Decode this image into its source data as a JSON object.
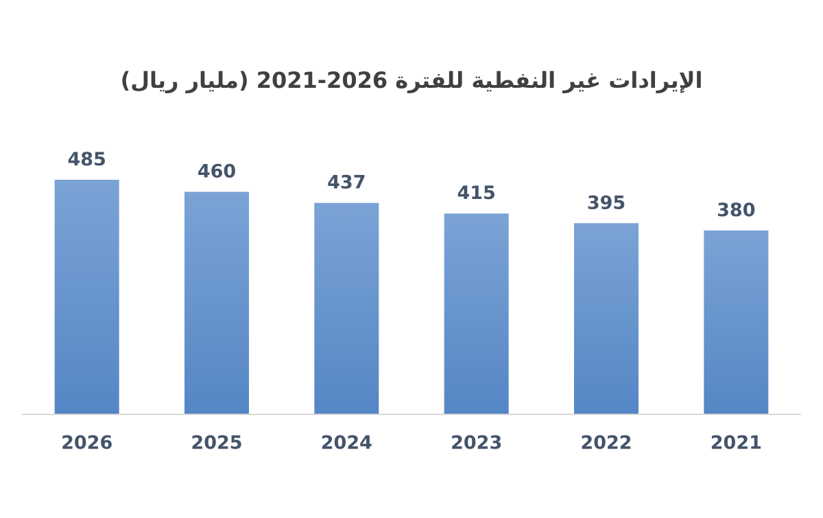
{
  "chart_data": {
    "type": "bar",
    "title": "الإيرادات غير النفطية للفترة 2026-2021 (مليار ريال)",
    "categories": [
      "2026",
      "2025",
      "2024",
      "2023",
      "2022",
      "2021"
    ],
    "values": [
      485,
      460,
      437,
      415,
      395,
      380
    ],
    "xlabel": "",
    "ylabel": "",
    "ylim": [
      0,
      485
    ],
    "grid": false,
    "legend": "none",
    "bar_color_top": "#7ba3d6",
    "bar_color_bottom": "#5586c5",
    "axis_color": "#d9d9d9"
  }
}
